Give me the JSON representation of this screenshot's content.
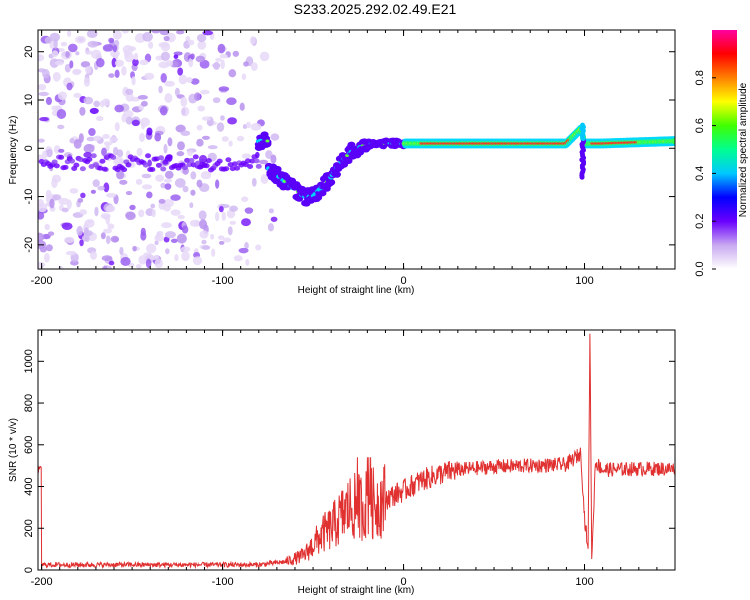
{
  "title": "S233.2025.292.02.49.E21",
  "chart_data": [
    {
      "type": "heatmap",
      "title": "S233.2025.292.02.49.E21",
      "xlabel": "Height of straight line (km)",
      "ylabel": "Frequency (Hz)",
      "xlim": [
        -202,
        150
      ],
      "ylim": [
        -25,
        24.5
      ],
      "x_ticks": [
        -200,
        -100,
        0,
        100
      ],
      "y_ticks": [
        -20,
        -10,
        0,
        10,
        20
      ],
      "colorbar": {
        "label": "Normalized spectral amplitude",
        "range": [
          0,
          1
        ],
        "ticks": [
          0,
          0.2,
          0.4,
          0.6,
          0.8
        ],
        "colors": [
          "#ffffff",
          "#c8a8f0",
          "#6a00ff",
          "#0000ff",
          "#00c8ff",
          "#00ff90",
          "#40ff00",
          "#ffff00",
          "#ff8000",
          "#ff0000",
          "#ff00a0"
        ]
      },
      "ridge": {
        "x": [
          -75,
          -65,
          -55,
          -50,
          -45,
          -40,
          -35,
          -30,
          -25,
          -20,
          -10,
          0,
          20,
          50,
          90,
          98,
          100,
          110,
          150
        ],
        "frequency": [
          -4,
          -7,
          -10,
          -10,
          -8,
          -6,
          -3,
          -1,
          0,
          1,
          1,
          1,
          1,
          1,
          1,
          4,
          1,
          1,
          1.5
        ]
      }
    },
    {
      "type": "line",
      "title": "",
      "xlabel": "Height of straight line (km)",
      "ylabel": "SNR (10 * v/v)",
      "xlim": [
        -202,
        150
      ],
      "ylim": [
        0,
        1150
      ],
      "x_ticks": [
        -200,
        -100,
        0,
        100
      ],
      "y_ticks": [
        0,
        200,
        400,
        600,
        800,
        1000
      ],
      "series": [
        {
          "name": "SNR",
          "color": "#e03030",
          "x": [
            -200,
            -150,
            -100,
            -80,
            -65,
            -55,
            -50,
            -45,
            -40,
            -35,
            -30,
            -25,
            -20,
            -15,
            -10,
            -5,
            0,
            10,
            20,
            30,
            50,
            70,
            90,
            98,
            100,
            102,
            103,
            104,
            106,
            110,
            130,
            150
          ],
          "y": [
            25,
            25,
            25,
            25,
            40,
            70,
            120,
            170,
            200,
            250,
            300,
            300,
            320,
            320,
            340,
            360,
            380,
            430,
            460,
            480,
            495,
            500,
            505,
            560,
            250,
            100,
            1150,
            40,
            520,
            480,
            485,
            485
          ]
        }
      ]
    }
  ]
}
